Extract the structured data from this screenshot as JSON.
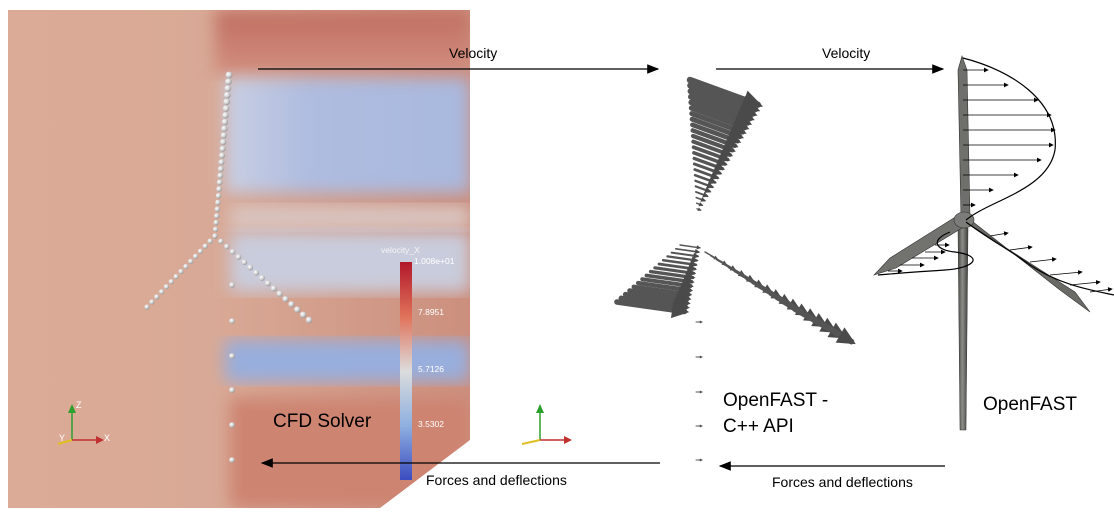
{
  "panels": {
    "cfd": {
      "label": "CFD Solver",
      "colorbar": {
        "title": "velocity_X",
        "max_label": "1.008e+01",
        "ticks": [
          "7.8951",
          "5.7126",
          "3.5302"
        ]
      },
      "axes": {
        "x": "X",
        "y": "Y",
        "z": "Z"
      }
    },
    "api": {
      "label_line1": "OpenFAST -",
      "label_line2": "C++ API"
    },
    "openfast": {
      "label": "OpenFAST"
    }
  },
  "arrows": {
    "velocity_1": "Velocity",
    "velocity_2": "Velocity",
    "forces_1": "Forces and deflections",
    "forces_2": "Forces and deflections"
  },
  "colors": {
    "flow_red": "#c8705e",
    "flow_blue": "#9fb3dc",
    "background_tan": "#d6a893"
  }
}
